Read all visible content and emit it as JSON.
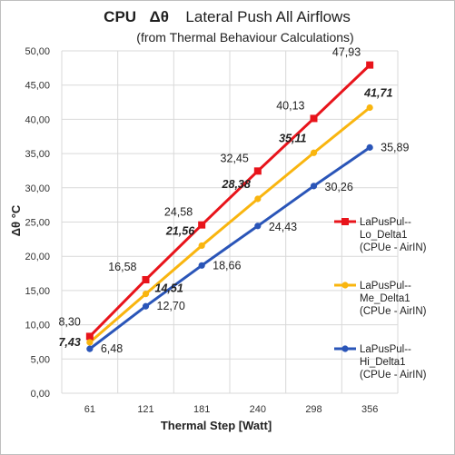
{
  "chart_data": {
    "type": "line",
    "title_part1": "CPU",
    "title_part2": "Δθ",
    "title_part3": "Lateral Push All Airflows",
    "subtitle": "(from Thermal Behaviour Calculations)",
    "xlabel": "Thermal Step [Watt]",
    "ylabel": "Δθ °C",
    "categories": [
      "61",
      "121",
      "181",
      "240",
      "298",
      "356"
    ],
    "y_ticks": [
      "0,00",
      "5,00",
      "10,00",
      "15,00",
      "20,00",
      "25,00",
      "30,00",
      "35,00",
      "40,00",
      "45,00",
      "50,00"
    ],
    "ylim": [
      0,
      50
    ],
    "grid": true,
    "legend_position": "right",
    "series": [
      {
        "name_lines": [
          "LaPusPul--",
          "Lo_Delta1",
          "(CPUe - AirIN)"
        ],
        "color": "#e8141b",
        "marker": "square",
        "values": [
          8.3,
          16.58,
          24.58,
          32.45,
          40.13,
          47.93
        ],
        "labels": [
          "8,30",
          "16,58",
          "24,58",
          "32,45",
          "40,13",
          "47,93"
        ],
        "label_style": "normal"
      },
      {
        "name_lines": [
          "LaPusPul--",
          "Me_Delta1",
          "(CPUe - AirIN)"
        ],
        "color": "#f9b50f",
        "marker": "circle",
        "values": [
          7.43,
          14.51,
          21.56,
          28.38,
          35.11,
          41.71
        ],
        "labels": [
          "7,43",
          "14,51",
          "21,56",
          "28,38",
          "35,11",
          "41,71"
        ],
        "label_style": "bold-italic"
      },
      {
        "name_lines": [
          "LaPusPul--",
          "Hi_Delta1",
          "(CPUe - AirIN)"
        ],
        "color": "#2a55b8",
        "marker": "circle",
        "values": [
          6.48,
          12.7,
          18.66,
          24.43,
          30.26,
          35.89
        ],
        "labels": [
          "6,48",
          "12,70",
          "18,66",
          "24,43",
          "30,26",
          "35,89"
        ],
        "label_style": "normal"
      }
    ]
  }
}
